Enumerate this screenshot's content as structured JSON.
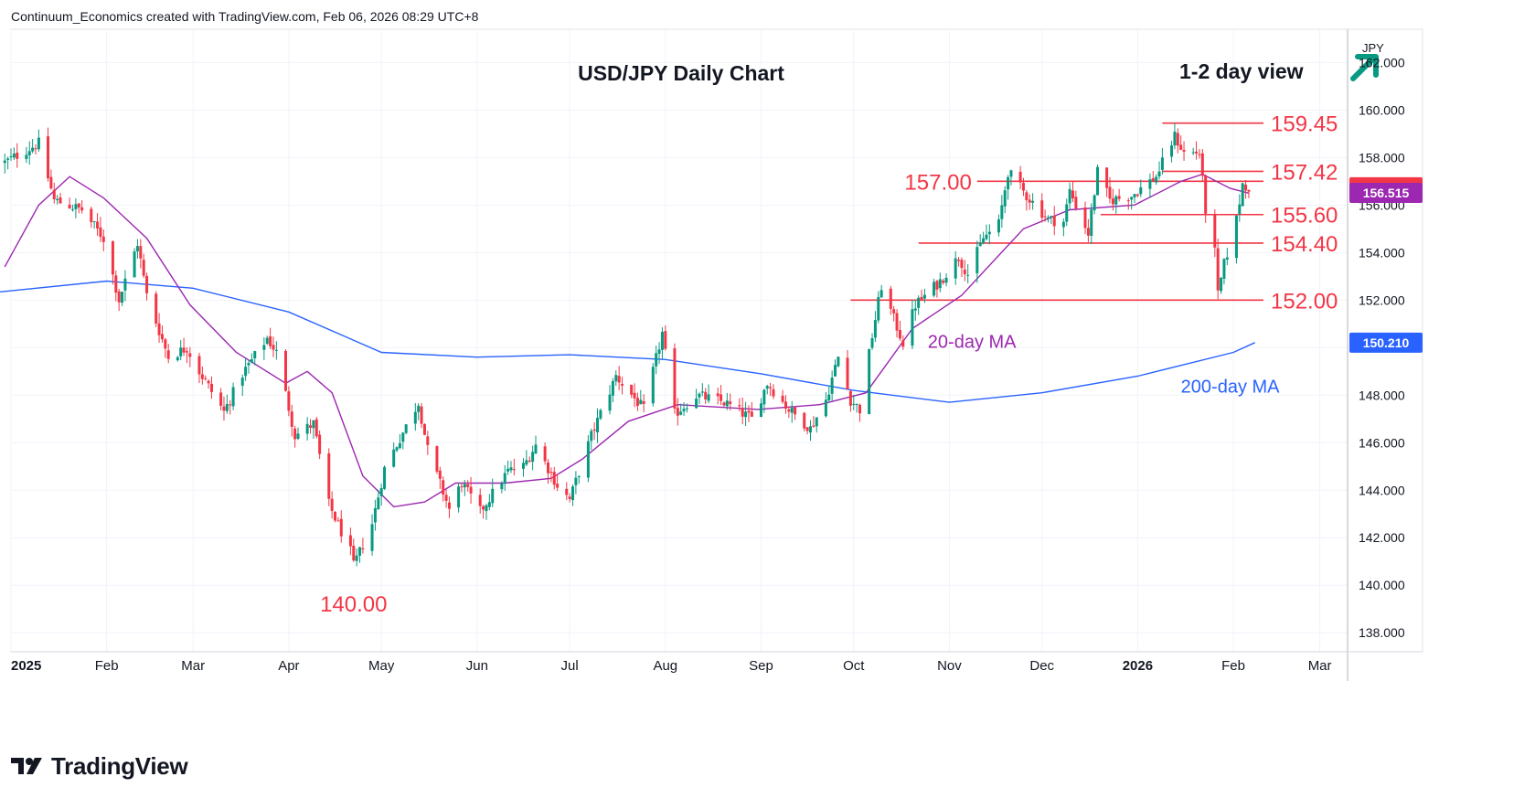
{
  "header": {
    "credit": "Continuum_Economics created with TradingView.com, Feb 06, 2026 08:29 UTC+8"
  },
  "logo": {
    "text": "TradingView",
    "icon": "tradingview-logo-icon"
  },
  "colors": {
    "bull": "#089981",
    "bear": "#f23645",
    "ma20": "#9c27b0",
    "ma200": "#2962ff",
    "level": "#f23645",
    "arrow": "#089981",
    "grid": "#f0f3fa"
  },
  "chart_data": {
    "type": "candlestick",
    "title": "USD/JPY Daily Chart",
    "view": {
      "label": "1-2 day view",
      "icon": "arrow-up-right-icon"
    },
    "currency_label": "JPY",
    "ylim": [
      137.2,
      163.4
    ],
    "y_ticks": [
      162,
      160,
      158,
      156,
      154,
      152,
      150,
      148,
      146,
      144,
      142,
      140,
      138
    ],
    "y_tick_labels": [
      "162.000",
      "160.000",
      "158.000",
      "156.000",
      "154.000",
      "152.000",
      "150.000",
      "148.000",
      "146.000",
      "144.000",
      "142.000",
      "140.000",
      "138.000"
    ],
    "x_start": "2025-01-01",
    "x_end": "2026-03-10",
    "x_ticks": [
      {
        "date": "2025-01-01",
        "label": "2025",
        "bold": true
      },
      {
        "date": "2025-02-01",
        "label": "Feb"
      },
      {
        "date": "2025-03-01",
        "label": "Mar"
      },
      {
        "date": "2025-04-01",
        "label": "Apr"
      },
      {
        "date": "2025-05-01",
        "label": "May"
      },
      {
        "date": "2025-06-01",
        "label": "Jun"
      },
      {
        "date": "2025-07-01",
        "label": "Jul"
      },
      {
        "date": "2025-08-01",
        "label": "Aug"
      },
      {
        "date": "2025-09-01",
        "label": "Sep"
      },
      {
        "date": "2025-10-01",
        "label": "Oct"
      },
      {
        "date": "2025-11-01",
        "label": "Nov"
      },
      {
        "date": "2025-12-01",
        "label": "Dec"
      },
      {
        "date": "2026-01-01",
        "label": "2026",
        "bold": true
      },
      {
        "date": "2026-02-01",
        "label": "Feb"
      },
      {
        "date": "2026-03-01",
        "label": "Mar"
      }
    ],
    "price_path": [
      [
        "2024-12-30",
        157.8
      ],
      [
        "2025-01-10",
        158.6
      ],
      [
        "2025-01-15",
        156.2
      ],
      [
        "2025-01-24",
        155.8
      ],
      [
        "2025-01-31",
        154.6
      ],
      [
        "2025-02-05",
        152.0
      ],
      [
        "2025-02-11",
        154.4
      ],
      [
        "2025-02-14",
        152.2
      ],
      [
        "2025-02-21",
        149.6
      ],
      [
        "2025-02-27",
        150.0
      ],
      [
        "2025-03-03",
        149.0
      ],
      [
        "2025-03-11",
        147.3
      ],
      [
        "2025-03-17",
        148.9
      ],
      [
        "2025-03-25",
        150.4
      ],
      [
        "2025-03-28",
        149.8
      ],
      [
        "2025-04-03",
        146.3
      ],
      [
        "2025-04-09",
        146.8
      ],
      [
        "2025-04-14",
        143.4
      ],
      [
        "2025-04-21",
        141.4
      ],
      [
        "2025-04-22",
        140.8
      ],
      [
        "2025-04-28",
        142.6
      ],
      [
        "2025-05-02",
        144.9
      ],
      [
        "2025-05-13",
        147.7
      ],
      [
        "2025-05-16",
        145.7
      ],
      [
        "2025-05-23",
        143.2
      ],
      [
        "2025-05-27",
        144.3
      ],
      [
        "2025-06-02",
        143.1
      ],
      [
        "2025-06-11",
        144.8
      ],
      [
        "2025-06-16",
        145.0
      ],
      [
        "2025-06-20",
        145.9
      ],
      [
        "2025-06-27",
        144.2
      ],
      [
        "2025-07-01",
        143.6
      ],
      [
        "2025-07-08",
        146.3
      ],
      [
        "2025-07-16",
        148.8
      ],
      [
        "2025-07-25",
        147.4
      ],
      [
        "2025-07-31",
        150.6
      ],
      [
        "2025-08-04",
        147.2
      ],
      [
        "2025-08-11",
        148.0
      ],
      [
        "2025-08-20",
        147.7
      ],
      [
        "2025-08-29",
        147.0
      ],
      [
        "2025-09-03",
        148.5
      ],
      [
        "2025-09-10",
        147.4
      ],
      [
        "2025-09-17",
        146.6
      ],
      [
        "2025-09-22",
        147.8
      ],
      [
        "2025-09-26",
        149.6
      ],
      [
        "2025-09-30",
        147.8
      ],
      [
        "2025-10-03",
        147.4
      ],
      [
        "2025-10-07",
        150.5
      ],
      [
        "2025-10-10",
        152.6
      ],
      [
        "2025-10-14",
        151.2
      ],
      [
        "2025-10-17",
        150.2
      ],
      [
        "2025-10-21",
        151.8
      ],
      [
        "2025-10-29",
        152.8
      ],
      [
        "2025-11-04",
        153.8
      ],
      [
        "2025-11-07",
        153.1
      ],
      [
        "2025-11-12",
        154.6
      ],
      [
        "2025-11-17",
        155.2
      ],
      [
        "2025-11-20",
        157.4
      ],
      [
        "2025-11-26",
        156.4
      ],
      [
        "2025-12-03",
        155.4
      ],
      [
        "2025-12-08",
        155.3
      ],
      [
        "2025-12-10",
        156.6
      ],
      [
        "2025-12-16",
        154.8
      ],
      [
        "2025-12-19",
        157.4
      ],
      [
        "2025-12-23",
        156.2
      ],
      [
        "2025-12-30",
        156.4
      ],
      [
        "2026-01-07",
        157.2
      ],
      [
        "2026-01-13",
        158.9
      ],
      [
        "2026-01-16",
        158.2
      ],
      [
        "2026-01-21",
        158.2
      ],
      [
        "2026-01-23",
        155.8
      ],
      [
        "2026-01-26",
        154.0
      ],
      [
        "2026-01-27",
        152.2
      ],
      [
        "2026-01-29",
        153.5
      ],
      [
        "2026-02-02",
        155.4
      ],
      [
        "2026-02-04",
        156.9
      ],
      [
        "2026-02-06",
        156.75
      ]
    ],
    "ma20_path": [
      [
        "2024-12-30",
        153.4
      ],
      [
        "2025-01-10",
        156.0
      ],
      [
        "2025-01-20",
        157.2
      ],
      [
        "2025-01-31",
        156.3
      ],
      [
        "2025-02-14",
        154.6
      ],
      [
        "2025-02-28",
        151.8
      ],
      [
        "2025-03-15",
        149.8
      ],
      [
        "2025-03-31",
        148.5
      ],
      [
        "2025-04-07",
        149.0
      ],
      [
        "2025-04-15",
        148.1
      ],
      [
        "2025-04-25",
        144.6
      ],
      [
        "2025-05-05",
        143.3
      ],
      [
        "2025-05-15",
        143.5
      ],
      [
        "2025-05-25",
        144.3
      ],
      [
        "2025-06-10",
        144.3
      ],
      [
        "2025-06-25",
        144.5
      ],
      [
        "2025-07-05",
        145.3
      ],
      [
        "2025-07-20",
        146.9
      ],
      [
        "2025-08-05",
        147.6
      ],
      [
        "2025-08-31",
        147.4
      ],
      [
        "2025-09-20",
        147.6
      ],
      [
        "2025-10-05",
        148.1
      ],
      [
        "2025-10-20",
        150.8
      ],
      [
        "2025-11-05",
        152.2
      ],
      [
        "2025-11-25",
        155.0
      ],
      [
        "2025-12-10",
        155.8
      ],
      [
        "2025-12-31",
        156.0
      ],
      [
        "2026-01-15",
        157.0
      ],
      [
        "2026-01-22",
        157.3
      ],
      [
        "2026-01-31",
        156.7
      ],
      [
        "2026-02-06",
        156.5
      ]
    ],
    "ma200_path": [
      [
        "2024-12-25",
        152.3
      ],
      [
        "2025-02-01",
        152.8
      ],
      [
        "2025-03-01",
        152.5
      ],
      [
        "2025-04-01",
        151.5
      ],
      [
        "2025-05-01",
        149.8
      ],
      [
        "2025-06-01",
        149.6
      ],
      [
        "2025-07-01",
        149.7
      ],
      [
        "2025-08-01",
        149.5
      ],
      [
        "2025-09-01",
        148.9
      ],
      [
        "2025-10-01",
        148.2
      ],
      [
        "2025-11-01",
        147.7
      ],
      [
        "2025-12-01",
        148.1
      ],
      [
        "2026-01-01",
        148.8
      ],
      [
        "2026-02-01",
        149.8
      ],
      [
        "2026-02-08",
        150.21
      ]
    ],
    "series": [
      {
        "name": "20-day MA",
        "color": "#9c27b0",
        "label_at": [
          "2025-10-25",
          150.0
        ]
      },
      {
        "name": "200-day MA",
        "color": "#2962ff",
        "label_at": [
          "2026-01-15",
          148.1
        ]
      }
    ],
    "levels": [
      {
        "label": "159.45",
        "value": 159.45,
        "from": "2026-01-09"
      },
      {
        "label": "157.42",
        "value": 157.42,
        "from": "2026-01-09"
      },
      {
        "label": "157.00",
        "value": 157.0,
        "from": "2025-11-10",
        "label_side": "left"
      },
      {
        "label": "155.60",
        "value": 155.6,
        "from": "2025-12-20"
      },
      {
        "label": "154.40",
        "value": 154.4,
        "from": "2025-10-22"
      },
      {
        "label": "152.00",
        "value": 152.0,
        "from": "2025-09-30"
      }
    ],
    "low_annotation": {
      "label": "140.00",
      "date": "2025-04-22",
      "value": 140.0
    },
    "price_badges": [
      {
        "label": "156.747",
        "value": 156.747,
        "color": "#f23645"
      },
      {
        "label": "156.515",
        "value": 156.515,
        "color": "#9c27b0"
      },
      {
        "label": "150.210",
        "value": 150.21,
        "color": "#2962ff"
      }
    ]
  }
}
